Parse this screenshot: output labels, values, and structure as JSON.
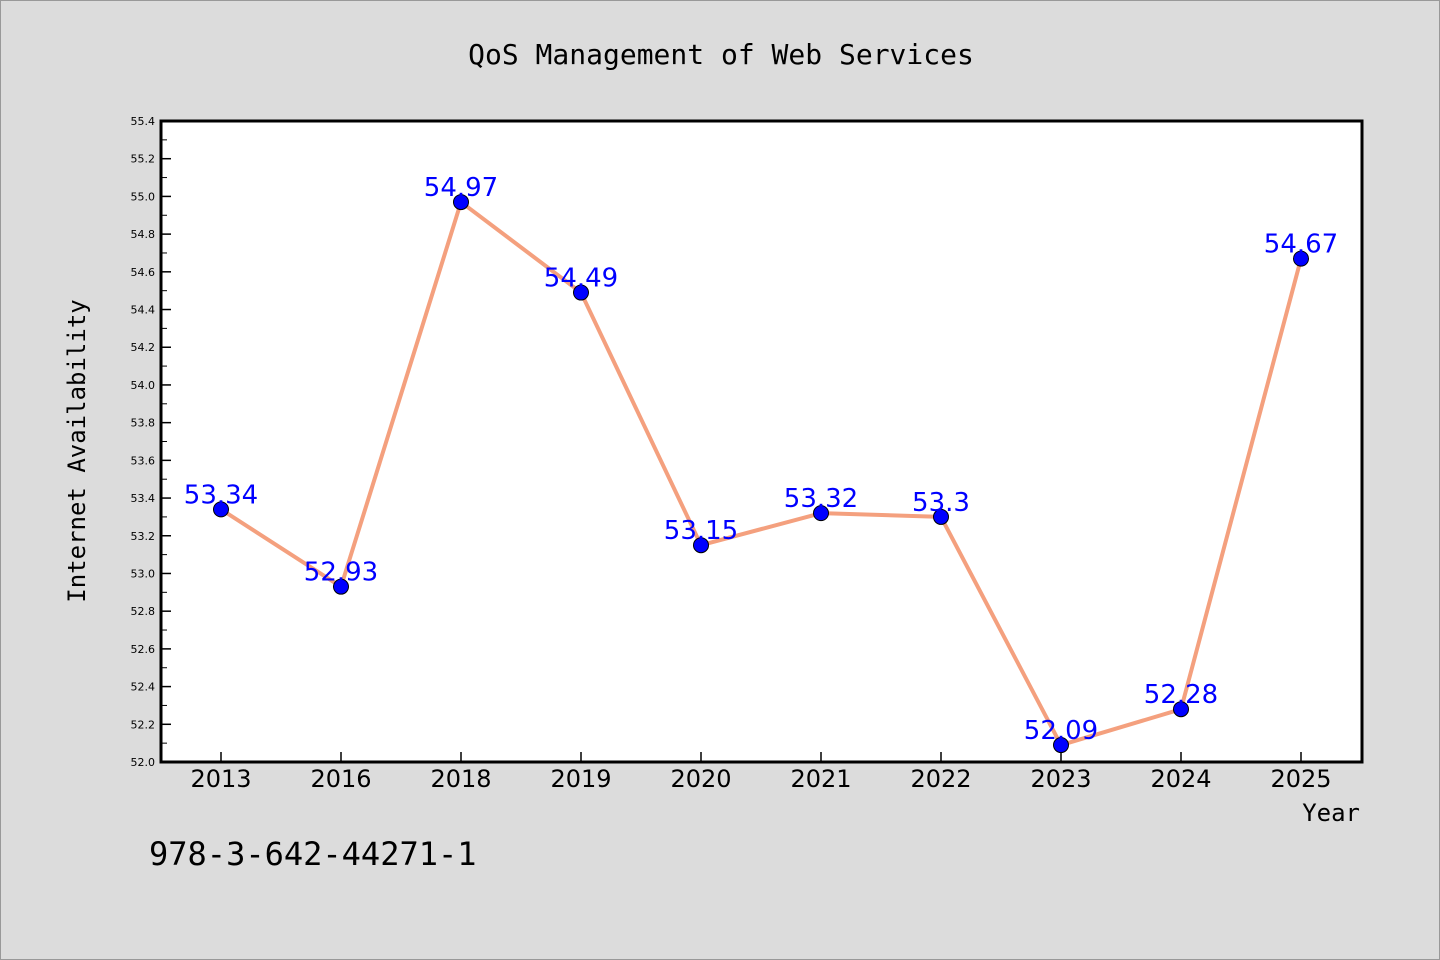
{
  "chart_data": {
    "type": "line",
    "title": "QoS Management of Web Services",
    "xlabel": "Year",
    "ylabel": "Internet Availability",
    "categories": [
      "2013",
      "2016",
      "2018",
      "2019",
      "2020",
      "2021",
      "2022",
      "2023",
      "2024",
      "2025"
    ],
    "series": [
      {
        "values": [
          53.34,
          52.93,
          54.97,
          54.49,
          53.15,
          53.32,
          53.3,
          52.09,
          52.28,
          54.67
        ]
      }
    ],
    "data_labels": [
      "53.34",
      "52.93",
      "54.97",
      "54.49",
      "53.15",
      "53.32",
      "53.3",
      "52.09",
      "52.28",
      "54.67"
    ],
    "ylim": [
      52.0,
      55.4
    ],
    "yticks": [
      "52.0",
      "52.2",
      "52.4",
      "52.6",
      "52.8",
      "53.0",
      "53.2",
      "53.4",
      "53.6",
      "53.8",
      "54.0",
      "54.2",
      "54.4",
      "54.6",
      "54.8",
      "55.0",
      "55.2",
      "55.4"
    ],
    "grid": false,
    "legend": "none",
    "colors": {
      "line": "#f4a07e",
      "marker": "#0000ff",
      "data_label": "#0000ff",
      "background": "#dcdcdc",
      "plot_background": "#ffffff"
    }
  },
  "footer_text": "978-3-642-44271-1"
}
